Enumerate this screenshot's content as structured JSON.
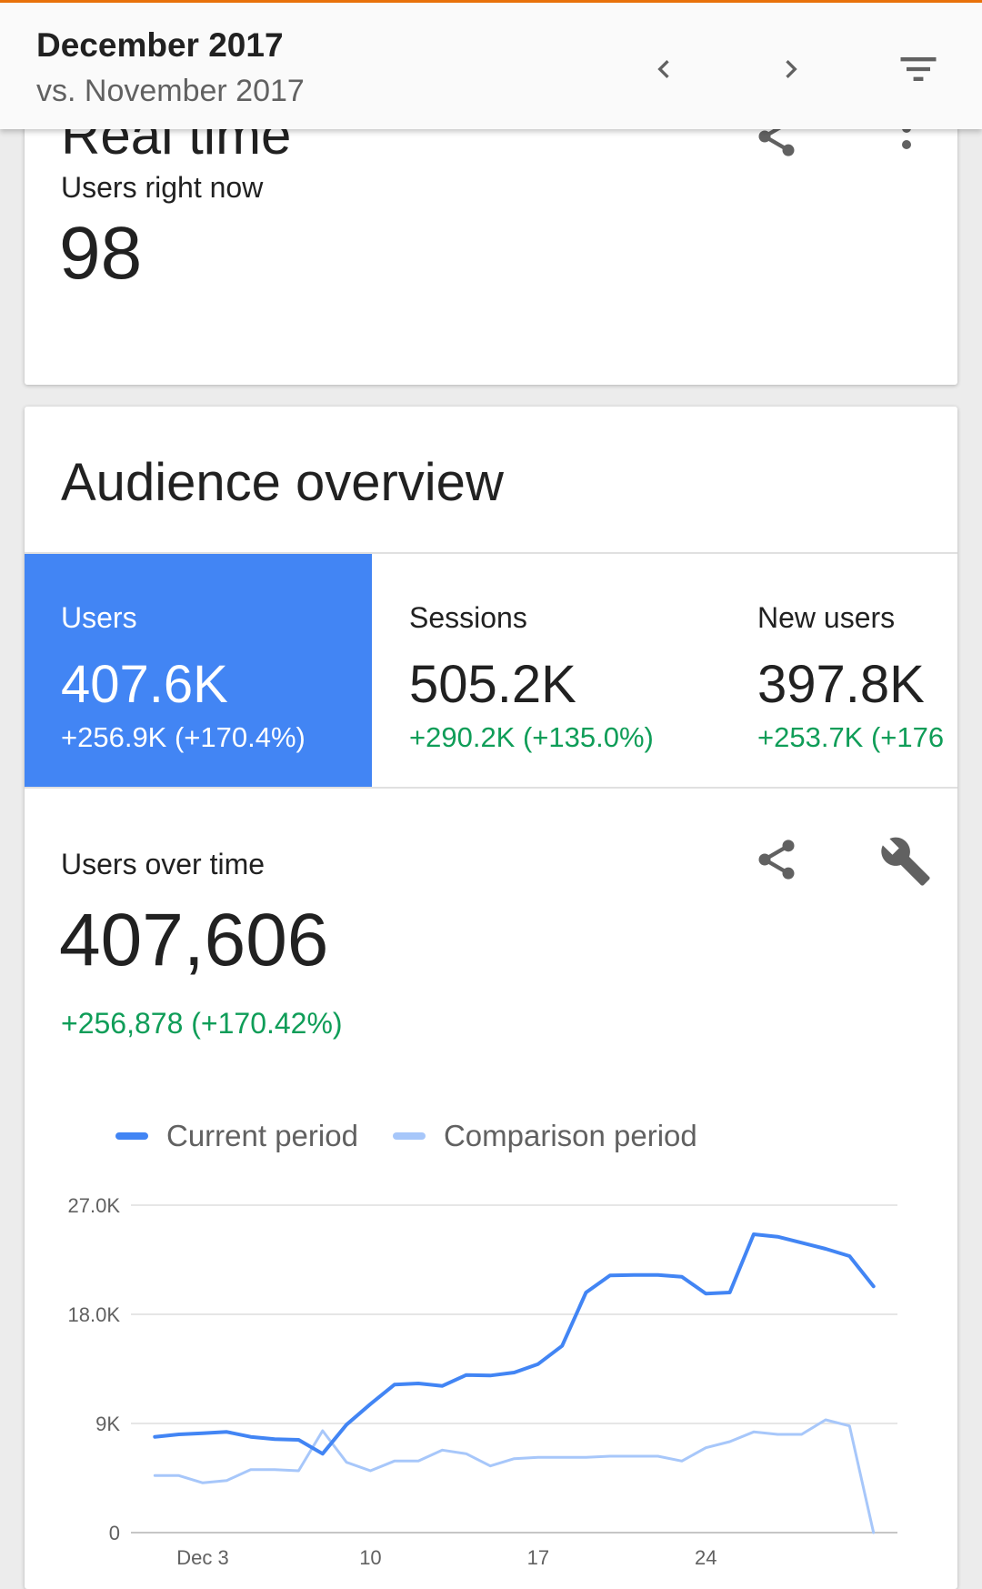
{
  "header": {
    "title": "December 2017",
    "subtitle": "vs. November 2017",
    "prev_icon": "chevron-left-icon",
    "next_icon": "chevron-right-icon",
    "filter_icon": "filter-icon"
  },
  "realtime": {
    "title": "Real time",
    "sublabel": "Users right now",
    "value": "98"
  },
  "audience": {
    "title": "Audience overview",
    "metrics": [
      {
        "label": "Users",
        "value": "407.6K",
        "delta": "+256.9K (+170.4%)",
        "selected": true
      },
      {
        "label": "Sessions",
        "value": "505.2K",
        "delta": "+290.2K (+135.0%)",
        "selected": false
      },
      {
        "label": "New users",
        "value": "397.8K",
        "delta": "+253.7K (+176",
        "selected": false
      }
    ],
    "users_over_time": {
      "title": "Users over time",
      "value": "407,606",
      "delta": "+256,878 (+170.42%)"
    },
    "legend": {
      "current": "Current period",
      "comparison": "Comparison period"
    }
  },
  "colors": {
    "accent": "#4285f4",
    "comparison": "#a7c7fa",
    "positive": "#0f9d58",
    "top_border": "#e8710a"
  },
  "chart_data": {
    "type": "line",
    "x": [
      1,
      2,
      3,
      4,
      5,
      6,
      7,
      8,
      9,
      10,
      11,
      12,
      13,
      14,
      15,
      16,
      17,
      18,
      19,
      20,
      21,
      22,
      23,
      24,
      25,
      26,
      27,
      28,
      29,
      30,
      31
    ],
    "ylim": [
      0,
      27000
    ],
    "y_ticks": [
      {
        "value": 0,
        "label": "0"
      },
      {
        "value": 9000,
        "label": "9K"
      },
      {
        "value": 18000,
        "label": "18.0K"
      },
      {
        "value": 27000,
        "label": "27.0K"
      }
    ],
    "x_ticks": [
      {
        "value": 3,
        "label": "Dec 3"
      },
      {
        "value": 10,
        "label": "10"
      },
      {
        "value": 17,
        "label": "17"
      },
      {
        "value": 24,
        "label": "24"
      }
    ],
    "grid": true,
    "series": [
      {
        "name": "Current period",
        "values": [
          7900,
          8100,
          8200,
          8300,
          7900,
          7700,
          7650,
          6500,
          8900,
          10600,
          12200,
          12300,
          12100,
          13000,
          12950,
          13200,
          13900,
          15400,
          19800,
          21200,
          21250,
          21250,
          21100,
          19700,
          19800,
          24600,
          24400,
          23900,
          23400,
          22800,
          20300
        ]
      },
      {
        "name": "Comparison period",
        "values": [
          4700,
          4700,
          4100,
          4300,
          5200,
          5200,
          5100,
          8400,
          5800,
          5100,
          5900,
          5900,
          6800,
          6500,
          5500,
          6100,
          6200,
          6200,
          6200,
          6300,
          6300,
          6300,
          5900,
          7000,
          7500,
          8300,
          8100,
          8100,
          9300,
          8800,
          0
        ]
      }
    ]
  }
}
